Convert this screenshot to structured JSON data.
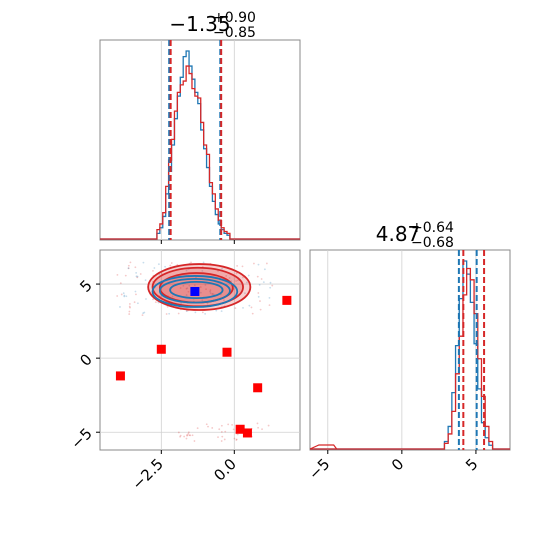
{
  "chart_data": {
    "type": "corner",
    "parameters": [
      {
        "title_center": "−1.35",
        "title_plus": "+0.90",
        "title_minus": "−0.85",
        "range": [
          -4.6,
          2.25
        ],
        "ticks": [
          -2.5,
          0.0
        ],
        "tick_labels": [
          "−2.5",
          "0.0"
        ],
        "quantiles": {
          "blue": [
            -2.23,
            -0.48
          ],
          "red": [
            -2.18,
            -0.45
          ]
        },
        "hist_bins": [
          -2.6,
          -2.5,
          -2.4,
          -2.3,
          -2.2,
          -2.1,
          -2.0,
          -1.9,
          -1.8,
          -1.7,
          -1.6,
          -1.5,
          -1.4,
          -1.3,
          -1.2,
          -1.1,
          -1.0,
          -0.9,
          -0.8,
          -0.7,
          -0.6,
          -0.5,
          -0.4,
          -0.3,
          -0.2
        ],
        "hist_blue": [
          0.03,
          0.06,
          0.12,
          0.24,
          0.36,
          0.5,
          0.64,
          0.76,
          0.86,
          0.97,
          1.0,
          0.92,
          0.85,
          0.78,
          0.72,
          0.58,
          0.48,
          0.38,
          0.28,
          0.2,
          0.13,
          0.08,
          0.05,
          0.03,
          0.02
        ],
        "hist_red": [
          0.05,
          0.08,
          0.14,
          0.28,
          0.42,
          0.53,
          0.68,
          0.78,
          0.82,
          0.84,
          0.92,
          0.88,
          0.8,
          0.76,
          0.75,
          0.62,
          0.5,
          0.45,
          0.3,
          0.24,
          0.16,
          0.1,
          0.06,
          0.04,
          0.03
        ]
      },
      {
        "title_center": "4.87",
        "title_plus": "+0.64",
        "title_minus": "−0.68",
        "range": [
          -6.2,
          7.3
        ],
        "ticks": [
          -5,
          0,
          5
        ],
        "tick_labels": [
          "−5",
          "0",
          "5"
        ],
        "quantiles": {
          "blue": [
            3.85,
            5.05
          ],
          "red": [
            4.15,
            5.55
          ]
        },
        "hist_bins": [
          3.0,
          3.25,
          3.5,
          3.75,
          4.0,
          4.25,
          4.5,
          4.75,
          5.0,
          5.25,
          5.5,
          5.75,
          6.0
        ],
        "hist_blue": [
          0.04,
          0.12,
          0.3,
          0.55,
          0.8,
          1.0,
          0.93,
          0.78,
          0.56,
          0.32,
          0.14,
          0.06,
          0.02
        ],
        "hist_red": [
          0.03,
          0.08,
          0.2,
          0.4,
          0.6,
          0.82,
          0.96,
          0.9,
          0.72,
          0.48,
          0.28,
          0.12,
          0.04
        ]
      }
    ],
    "joint": {
      "truth_point": {
        "x": -1.35,
        "y": 4.5
      },
      "markers": [
        {
          "x": 1.8,
          "y": 3.9
        },
        {
          "x": -2.5,
          "y": 0.6
        },
        {
          "x": -0.25,
          "y": 0.4
        },
        {
          "x": -3.9,
          "y": -1.2
        },
        {
          "x": 0.8,
          "y": -2.0
        },
        {
          "x": 0.2,
          "y": -4.8
        },
        {
          "x": 0.45,
          "y": -5.05
        }
      ],
      "contours": {
        "red": [
          {
            "cx": -1.2,
            "cy": 4.8,
            "rx": 1.75,
            "ry": 1.55
          },
          {
            "cx": -1.25,
            "cy": 4.8,
            "rx": 1.55,
            "ry": 1.3
          },
          {
            "cx": -1.3,
            "cy": 4.75,
            "rx": 1.25,
            "ry": 1.0
          }
        ],
        "blue": [
          {
            "cx": -1.35,
            "cy": 4.5,
            "rx": 1.45,
            "ry": 1.05
          },
          {
            "cx": -1.35,
            "cy": 4.55,
            "rx": 1.2,
            "ry": 0.8
          },
          {
            "cx": -1.3,
            "cy": 4.6,
            "rx": 0.9,
            "ry": 0.55
          }
        ]
      },
      "colors": {
        "red": "#d62728",
        "blue": "#1f77b4",
        "marker_red": "#ff0000",
        "marker_blue": "#0000ff"
      }
    },
    "grid": true
  }
}
